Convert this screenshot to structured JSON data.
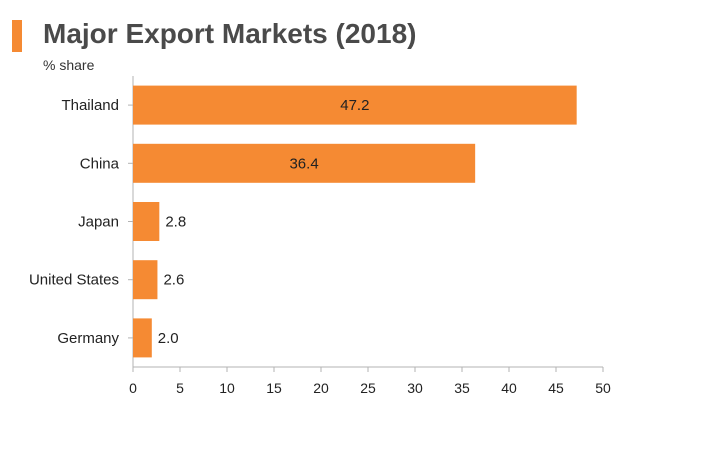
{
  "colors": {
    "bar": "#f58a33",
    "marker": "#f58a33",
    "axis": "#b3b3b3",
    "text": "#222222",
    "title": "#4a4a4a"
  },
  "chart_data": {
    "type": "bar",
    "orientation": "horizontal",
    "title": "Major Export Markets (2018)",
    "subtitle": "% share",
    "categories": [
      "Thailand",
      "China",
      "Japan",
      "United States",
      "Germany"
    ],
    "values": [
      47.2,
      36.4,
      2.8,
      2.6,
      2.0
    ],
    "value_labels": [
      "47.2",
      "36.4",
      "2.8",
      "2.6",
      "2.0"
    ],
    "xlim": [
      0,
      50
    ],
    "xticks": [
      0,
      5,
      10,
      15,
      20,
      25,
      30,
      35,
      40,
      45,
      50
    ],
    "xlabel": "",
    "ylabel": "",
    "grid": false,
    "legend": "none"
  }
}
